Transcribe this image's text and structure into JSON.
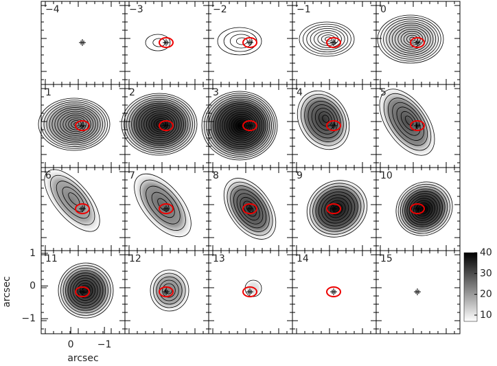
{
  "panels": [
    {
      "label": "−4"
    },
    {
      "label": "−3"
    },
    {
      "label": "−2"
    },
    {
      "label": "−1"
    },
    {
      "label": "0"
    },
    {
      "label": "1"
    },
    {
      "label": "2"
    },
    {
      "label": "3"
    },
    {
      "label": "4"
    },
    {
      "label": "5"
    },
    {
      "label": "6"
    },
    {
      "label": "7"
    },
    {
      "label": "8"
    },
    {
      "label": "9"
    },
    {
      "label": "10"
    },
    {
      "label": "11"
    },
    {
      "label": "12"
    },
    {
      "label": "13"
    },
    {
      "label": "14"
    },
    {
      "label": "15"
    }
  ],
  "axes": {
    "x_label": "arcsec",
    "y_label": "arcsec",
    "xlim": [
      0.88,
      -1.61
    ],
    "ylim": [
      -1.46,
      1.08
    ],
    "xticks": [
      {
        "value": 0,
        "label": "0"
      },
      {
        "value": -1,
        "label": "−1"
      }
    ],
    "yticks": [
      1,
      0,
      {
        "value": -1,
        "label": "−1"
      }
    ]
  },
  "colorbar": {
    "lim": [
      7,
      40
    ],
    "ticks": [
      10,
      20,
      30,
      40
    ]
  }
}
